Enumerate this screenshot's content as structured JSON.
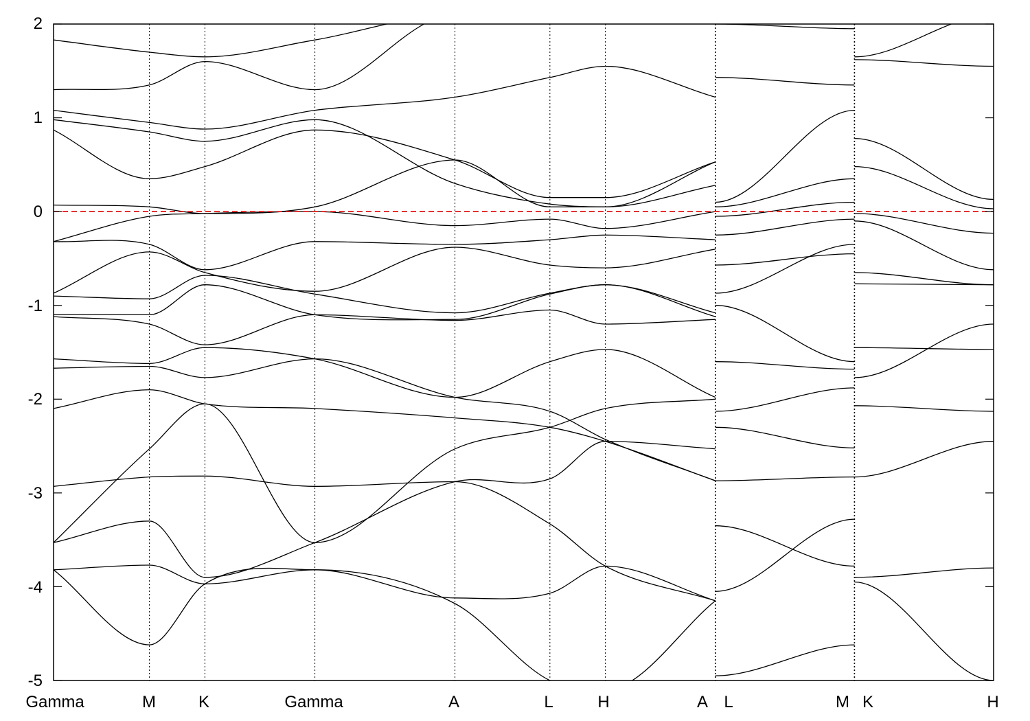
{
  "chart_data": {
    "type": "line",
    "title": "",
    "xlabel": "",
    "ylabel": "",
    "ylim": [
      -5,
      2
    ],
    "y_ticks": [
      2,
      1,
      0,
      -1,
      -2,
      -3,
      -4,
      -5
    ],
    "y_tick_labels": [
      "2",
      "1",
      "0",
      "-1",
      "-2",
      "-3",
      "-4",
      "-5"
    ],
    "k_points": [
      {
        "label": "Gamma",
        "x": 0.0
      },
      {
        "label": "M",
        "x": 0.102
      },
      {
        "label": "K",
        "x": 0.161
      },
      {
        "label": "Gamma",
        "x": 0.278
      },
      {
        "label": "A",
        "x": 0.427
      },
      {
        "label": "L",
        "x": 0.528
      },
      {
        "label": "H",
        "x": 0.587
      },
      {
        "label": "A",
        "x": 0.704
      },
      {
        "label": "L",
        "x": 0.704
      },
      {
        "label": "M",
        "x": 0.852
      },
      {
        "label": "K",
        "x": 0.852
      },
      {
        "label": "H",
        "x": 1.0
      }
    ],
    "path_breaks": [
      0.704,
      0.852
    ],
    "fermi_level": {
      "value": 0,
      "color": "#e00000",
      "style": "dashed"
    },
    "grid": "vertical dotted lines at high-symmetry points",
    "band_color": "#000000",
    "series": [
      {
        "x": [
          0,
          0.102,
          0.161,
          0.278,
          0.427,
          0.528,
          0.587,
          0.704
        ],
        "values": [
          -3.82,
          -4.62,
          -3.97,
          -3.82,
          -4.18,
          -5.0,
          -5.1,
          -4.15
        ]
      },
      {
        "x": [
          0,
          0.102,
          0.161,
          0.278,
          0.427,
          0.528,
          0.587,
          0.704
        ],
        "values": [
          -3.82,
          -3.77,
          -3.97,
          -3.82,
          -4.12,
          -4.07,
          -3.78,
          -4.15
        ]
      },
      {
        "x": [
          0,
          0.102,
          0.161,
          0.278,
          0.427,
          0.528,
          0.587,
          0.704
        ],
        "values": [
          -3.53,
          -3.3,
          -3.9,
          -3.53,
          -2.88,
          -2.85,
          -2.45,
          -2.53
        ]
      },
      {
        "x": [
          0,
          0.102,
          0.161,
          0.278,
          0.427,
          0.528,
          0.587,
          0.704
        ],
        "values": [
          -3.53,
          -2.53,
          -2.05,
          -3.53,
          -2.53,
          -2.3,
          -2.1,
          -2.0
        ]
      },
      {
        "x": [
          0,
          0.102,
          0.161,
          0.278,
          0.427,
          0.528,
          0.587,
          0.704
        ],
        "values": [
          -2.93,
          -2.83,
          -2.82,
          -2.93,
          -2.88,
          -3.33,
          -3.78,
          -4.15
        ]
      },
      {
        "x": [
          0,
          0.102,
          0.161,
          0.278,
          0.427,
          0.528,
          0.587,
          0.704
        ],
        "values": [
          -2.1,
          -1.9,
          -2.05,
          -2.1,
          -2.2,
          -2.3,
          -2.45,
          -2.87
        ]
      },
      {
        "x": [
          0,
          0.102,
          0.161,
          0.278,
          0.427,
          0.528,
          0.587,
          0.704
        ],
        "values": [
          -1.67,
          -1.65,
          -1.77,
          -1.57,
          -1.98,
          -2.13,
          -2.43,
          -2.87
        ]
      },
      {
        "x": [
          0,
          0.102,
          0.161,
          0.278,
          0.427,
          0.528,
          0.587,
          0.704
        ],
        "values": [
          -1.57,
          -1.62,
          -1.45,
          -1.57,
          -1.98,
          -1.6,
          -1.47,
          -1.98
        ]
      },
      {
        "x": [
          0,
          0.102,
          0.161,
          0.278,
          0.427,
          0.528,
          0.587,
          0.704
        ],
        "values": [
          -1.12,
          -1.2,
          -1.42,
          -1.1,
          -1.16,
          -1.05,
          -1.2,
          -1.15
        ]
      },
      {
        "x": [
          0,
          0.102,
          0.161,
          0.278,
          0.427,
          0.528,
          0.587,
          0.704
        ],
        "values": [
          -1.1,
          -1.1,
          -0.78,
          -1.1,
          -1.15,
          -0.88,
          -0.78,
          -1.12
        ]
      },
      {
        "x": [
          0,
          0.102,
          0.161,
          0.278,
          0.427,
          0.528,
          0.587,
          0.704
        ],
        "values": [
          -0.9,
          -0.93,
          -0.68,
          -0.88,
          -1.08,
          -0.87,
          -0.78,
          -1.08
        ]
      },
      {
        "x": [
          0,
          0.102,
          0.161,
          0.278,
          0.427,
          0.528,
          0.587,
          0.704
        ],
        "values": [
          -0.87,
          -0.43,
          -0.65,
          -0.85,
          -0.38,
          -0.57,
          -0.6,
          -0.4
        ]
      },
      {
        "x": [
          0,
          0.102,
          0.161,
          0.278,
          0.427,
          0.528,
          0.587,
          0.704
        ],
        "values": [
          -0.32,
          -0.35,
          -0.62,
          -0.32,
          -0.35,
          -0.3,
          -0.25,
          -0.3
        ]
      },
      {
        "x": [
          0,
          0.102,
          0.161,
          0.278,
          0.427,
          0.528,
          0.587,
          0.704
        ],
        "values": [
          -0.32,
          -0.05,
          -0.02,
          0.0,
          -0.15,
          -0.08,
          -0.18,
          0.0
        ]
      },
      {
        "x": [
          0,
          0.102,
          0.161,
          0.278,
          0.427,
          0.528,
          0.587,
          0.704
        ],
        "values": [
          0.07,
          0.05,
          -0.02,
          0.05,
          0.55,
          0.05,
          0.05,
          0.28
        ]
      },
      {
        "x": [
          0,
          0.102,
          0.161,
          0.278,
          0.427,
          0.528,
          0.587,
          0.704
        ],
        "values": [
          0.87,
          0.35,
          0.48,
          0.87,
          0.55,
          0.15,
          0.15,
          0.53
        ]
      },
      {
        "x": [
          0,
          0.102,
          0.161,
          0.278,
          0.427,
          0.528,
          0.587,
          0.704
        ],
        "values": [
          0.98,
          0.85,
          0.75,
          0.98,
          0.3,
          0.08,
          0.05,
          0.53
        ]
      },
      {
        "x": [
          0,
          0.102,
          0.161,
          0.278,
          0.427,
          0.528,
          0.587,
          0.704
        ],
        "values": [
          1.08,
          0.95,
          0.88,
          1.08,
          1.22,
          1.43,
          1.55,
          1.22
        ]
      },
      {
        "x": [
          0,
          0.102,
          0.161,
          0.278,
          0.427,
          0.528,
          0.587,
          0.704
        ],
        "values": [
          1.3,
          1.35,
          1.6,
          1.3,
          2.1,
          2.1,
          2.1,
          2.1
        ]
      },
      {
        "x": [
          0,
          0.102,
          0.161,
          0.278,
          0.427,
          0.528,
          0.587,
          0.704
        ],
        "values": [
          1.83,
          1.7,
          1.65,
          1.83,
          2.1,
          2.1,
          2.1,
          2.1
        ]
      },
      {
        "x": [
          0.704,
          0.852
        ],
        "values": [
          -4.95,
          -4.62
        ]
      },
      {
        "x": [
          0.704,
          0.852
        ],
        "values": [
          -4.05,
          -3.28
        ]
      },
      {
        "x": [
          0.704,
          0.852
        ],
        "values": [
          -3.35,
          -3.78
        ]
      },
      {
        "x": [
          0.704,
          0.852
        ],
        "values": [
          -2.87,
          -2.83
        ]
      },
      {
        "x": [
          0.704,
          0.852
        ],
        "values": [
          -2.3,
          -2.52
        ]
      },
      {
        "x": [
          0.704,
          0.852
        ],
        "values": [
          -2.13,
          -1.88
        ]
      },
      {
        "x": [
          0.704,
          0.852
        ],
        "values": [
          -1.6,
          -1.68
        ]
      },
      {
        "x": [
          0.704,
          0.852
        ],
        "values": [
          -1.0,
          -1.6
        ]
      },
      {
        "x": [
          0.704,
          0.852
        ],
        "values": [
          -0.87,
          -0.35
        ]
      },
      {
        "x": [
          0.704,
          0.852
        ],
        "values": [
          -0.57,
          -0.45
        ]
      },
      {
        "x": [
          0.704,
          0.852
        ],
        "values": [
          -0.25,
          -0.08
        ]
      },
      {
        "x": [
          0.704,
          0.852
        ],
        "values": [
          -0.05,
          0.1
        ]
      },
      {
        "x": [
          0.704,
          0.852
        ],
        "values": [
          0.05,
          0.35
        ]
      },
      {
        "x": [
          0.704,
          0.852
        ],
        "values": [
          0.1,
          1.08
        ]
      },
      {
        "x": [
          0.704,
          0.852
        ],
        "values": [
          1.43,
          1.35
        ]
      },
      {
        "x": [
          0.704,
          0.852
        ],
        "values": [
          2.0,
          1.95
        ]
      },
      {
        "x": [
          0.852,
          1.0
        ],
        "values": [
          -3.95,
          -5.0
        ]
      },
      {
        "x": [
          0.852,
          1.0
        ],
        "values": [
          -3.9,
          -3.8
        ]
      },
      {
        "x": [
          0.852,
          1.0
        ],
        "values": [
          -2.83,
          -2.45
        ]
      },
      {
        "x": [
          0.852,
          1.0
        ],
        "values": [
          -2.07,
          -2.13
        ]
      },
      {
        "x": [
          0.852,
          1.0
        ],
        "values": [
          -1.77,
          -1.2
        ]
      },
      {
        "x": [
          0.852,
          1.0
        ],
        "values": [
          -1.45,
          -1.47
        ]
      },
      {
        "x": [
          0.852,
          1.0
        ],
        "values": [
          -0.77,
          -0.78
        ]
      },
      {
        "x": [
          0.852,
          1.0
        ],
        "values": [
          -0.65,
          -0.78
        ]
      },
      {
        "x": [
          0.852,
          1.0
        ],
        "values": [
          -0.1,
          -0.62
        ]
      },
      {
        "x": [
          0.852,
          1.0
        ],
        "values": [
          -0.02,
          -0.23
        ]
      },
      {
        "x": [
          0.852,
          1.0
        ],
        "values": [
          0.48,
          0.03
        ]
      },
      {
        "x": [
          0.852,
          1.0
        ],
        "values": [
          0.78,
          0.13
        ]
      },
      {
        "x": [
          0.852,
          1.0
        ],
        "values": [
          1.65,
          2.1
        ]
      },
      {
        "x": [
          0.852,
          1.0
        ],
        "values": [
          1.62,
          1.55
        ]
      }
    ]
  }
}
